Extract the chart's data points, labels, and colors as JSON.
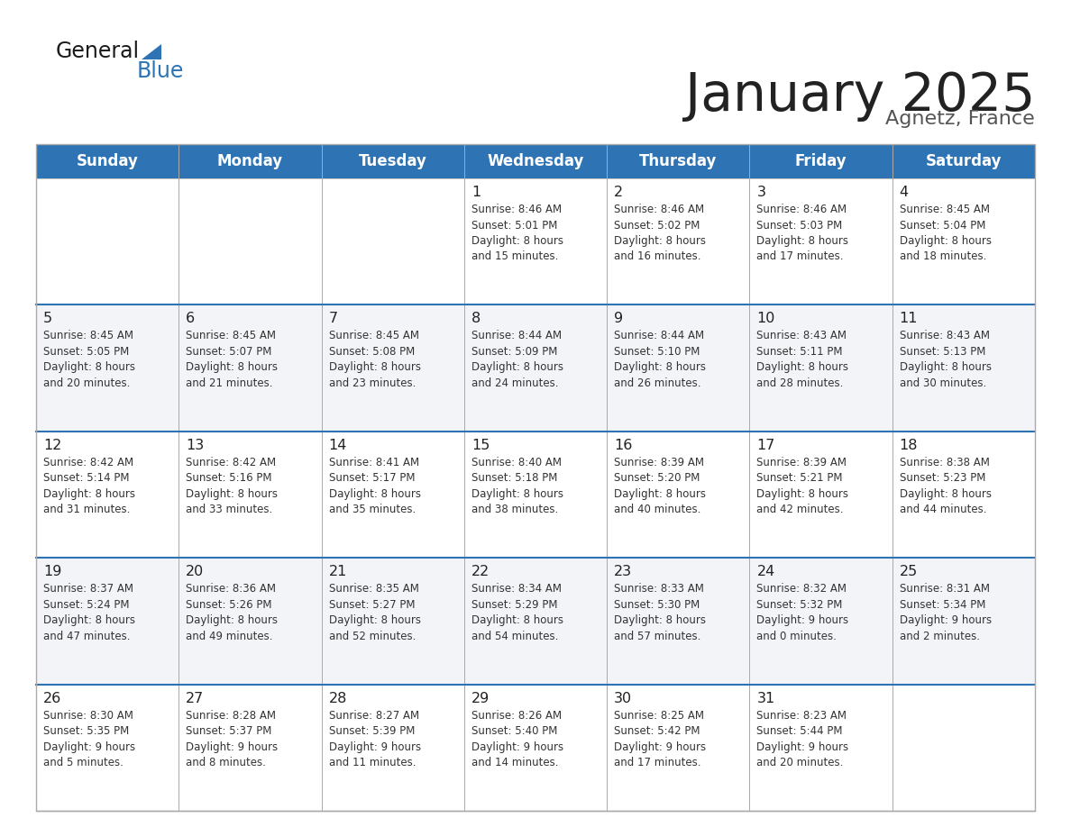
{
  "title": "January 2025",
  "subtitle": "Agnetz, France",
  "header_bg": "#2e74b5",
  "header_text": "#ffffff",
  "row_bg_light": "#f2f4f8",
  "row_bg_white": "#ffffff",
  "separator_color": "#2e74b5",
  "border_color": "#aaaaaa",
  "day_names": [
    "Sunday",
    "Monday",
    "Tuesday",
    "Wednesday",
    "Thursday",
    "Friday",
    "Saturday"
  ],
  "cell_text_color": "#333333",
  "title_color": "#222222",
  "subtitle_color": "#555555",
  "calendar_data": [
    [
      "",
      "",
      "",
      "1\nSunrise: 8:46 AM\nSunset: 5:01 PM\nDaylight: 8 hours\nand 15 minutes.",
      "2\nSunrise: 8:46 AM\nSunset: 5:02 PM\nDaylight: 8 hours\nand 16 minutes.",
      "3\nSunrise: 8:46 AM\nSunset: 5:03 PM\nDaylight: 8 hours\nand 17 minutes.",
      "4\nSunrise: 8:45 AM\nSunset: 5:04 PM\nDaylight: 8 hours\nand 18 minutes."
    ],
    [
      "5\nSunrise: 8:45 AM\nSunset: 5:05 PM\nDaylight: 8 hours\nand 20 minutes.",
      "6\nSunrise: 8:45 AM\nSunset: 5:07 PM\nDaylight: 8 hours\nand 21 minutes.",
      "7\nSunrise: 8:45 AM\nSunset: 5:08 PM\nDaylight: 8 hours\nand 23 minutes.",
      "8\nSunrise: 8:44 AM\nSunset: 5:09 PM\nDaylight: 8 hours\nand 24 minutes.",
      "9\nSunrise: 8:44 AM\nSunset: 5:10 PM\nDaylight: 8 hours\nand 26 minutes.",
      "10\nSunrise: 8:43 AM\nSunset: 5:11 PM\nDaylight: 8 hours\nand 28 minutes.",
      "11\nSunrise: 8:43 AM\nSunset: 5:13 PM\nDaylight: 8 hours\nand 30 minutes."
    ],
    [
      "12\nSunrise: 8:42 AM\nSunset: 5:14 PM\nDaylight: 8 hours\nand 31 minutes.",
      "13\nSunrise: 8:42 AM\nSunset: 5:16 PM\nDaylight: 8 hours\nand 33 minutes.",
      "14\nSunrise: 8:41 AM\nSunset: 5:17 PM\nDaylight: 8 hours\nand 35 minutes.",
      "15\nSunrise: 8:40 AM\nSunset: 5:18 PM\nDaylight: 8 hours\nand 38 minutes.",
      "16\nSunrise: 8:39 AM\nSunset: 5:20 PM\nDaylight: 8 hours\nand 40 minutes.",
      "17\nSunrise: 8:39 AM\nSunset: 5:21 PM\nDaylight: 8 hours\nand 42 minutes.",
      "18\nSunrise: 8:38 AM\nSunset: 5:23 PM\nDaylight: 8 hours\nand 44 minutes."
    ],
    [
      "19\nSunrise: 8:37 AM\nSunset: 5:24 PM\nDaylight: 8 hours\nand 47 minutes.",
      "20\nSunrise: 8:36 AM\nSunset: 5:26 PM\nDaylight: 8 hours\nand 49 minutes.",
      "21\nSunrise: 8:35 AM\nSunset: 5:27 PM\nDaylight: 8 hours\nand 52 minutes.",
      "22\nSunrise: 8:34 AM\nSunset: 5:29 PM\nDaylight: 8 hours\nand 54 minutes.",
      "23\nSunrise: 8:33 AM\nSunset: 5:30 PM\nDaylight: 8 hours\nand 57 minutes.",
      "24\nSunrise: 8:32 AM\nSunset: 5:32 PM\nDaylight: 9 hours\nand 0 minutes.",
      "25\nSunrise: 8:31 AM\nSunset: 5:34 PM\nDaylight: 9 hours\nand 2 minutes."
    ],
    [
      "26\nSunrise: 8:30 AM\nSunset: 5:35 PM\nDaylight: 9 hours\nand 5 minutes.",
      "27\nSunrise: 8:28 AM\nSunset: 5:37 PM\nDaylight: 9 hours\nand 8 minutes.",
      "28\nSunrise: 8:27 AM\nSunset: 5:39 PM\nDaylight: 9 hours\nand 11 minutes.",
      "29\nSunrise: 8:26 AM\nSunset: 5:40 PM\nDaylight: 9 hours\nand 14 minutes.",
      "30\nSunrise: 8:25 AM\nSunset: 5:42 PM\nDaylight: 9 hours\nand 17 minutes.",
      "31\nSunrise: 8:23 AM\nSunset: 5:44 PM\nDaylight: 9 hours\nand 20 minutes.",
      ""
    ]
  ]
}
